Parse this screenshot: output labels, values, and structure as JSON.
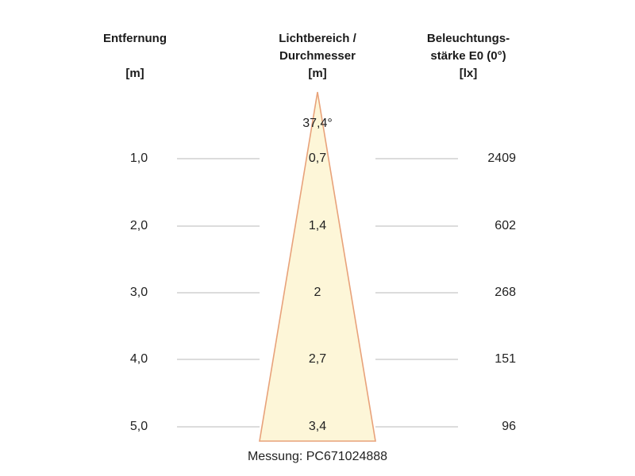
{
  "headers": {
    "distance": {
      "title": "Entfernung",
      "unit": "[m]"
    },
    "beam": {
      "line1": "Lichtbereich /",
      "line2": "Durchmesser",
      "unit": "[m]"
    },
    "illuminance": {
      "line1": "Beleuchtungs-",
      "line2": "stärke E0 (0°)",
      "unit": "[lx]"
    }
  },
  "beam_angle": "37,4°",
  "rows": [
    {
      "distance": "1,0",
      "diameter": "0,7",
      "lux": "2409"
    },
    {
      "distance": "2,0",
      "diameter": "1,4",
      "lux": "602"
    },
    {
      "distance": "3,0",
      "diameter": "2",
      "lux": "268"
    },
    {
      "distance": "4,0",
      "diameter": "2,7",
      "lux": "151"
    },
    {
      "distance": "5,0",
      "diameter": "3,4",
      "lux": "96"
    }
  ],
  "measurement": "Messung: PC671024888",
  "colors": {
    "cone_fill": "#fdf6d8",
    "cone_stroke": "#e8a27a",
    "guide_line": "#b8b8b8"
  }
}
